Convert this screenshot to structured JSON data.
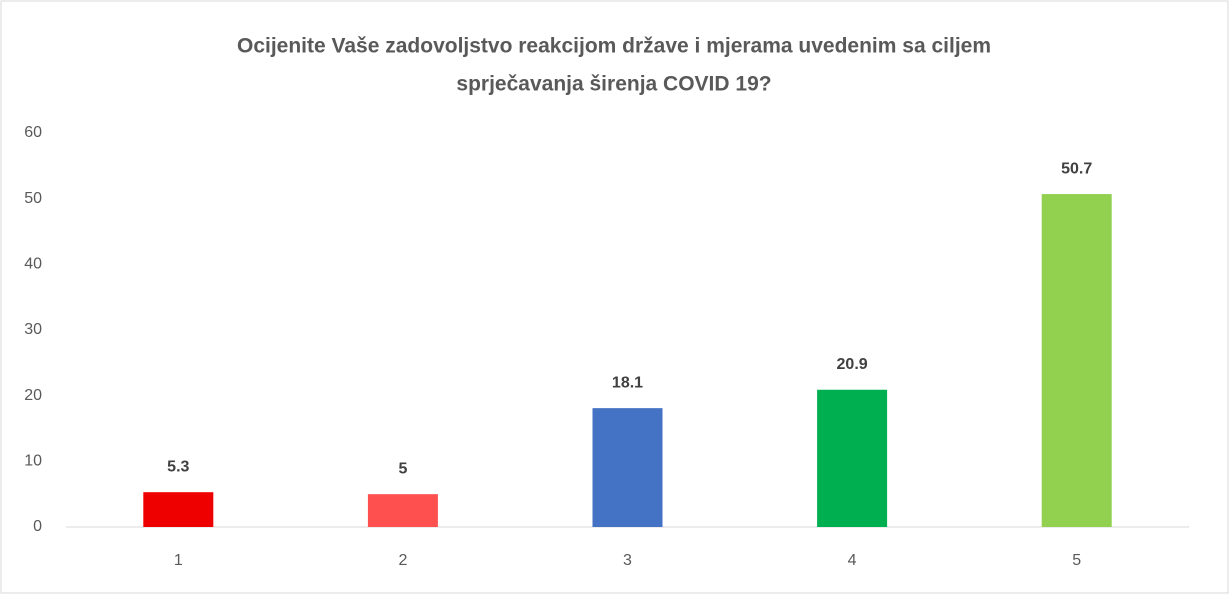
{
  "chart_data": {
    "type": "bar",
    "title": [
      "Ocijenite Vaše zadovoljstvo reakcijom države i mjerama uvedenim sa ciljem",
      "sprječavanja širenja COVID 19?"
    ],
    "categories": [
      "1",
      "2",
      "3",
      "4",
      "5"
    ],
    "values": [
      5.3,
      5,
      18.1,
      20.9,
      50.7
    ],
    "colors": [
      "#ee0000",
      "#ff5050",
      "#4472c4",
      "#00b050",
      "#92d050"
    ],
    "ylim": [
      0,
      60
    ],
    "yticks": [
      0,
      10,
      20,
      30,
      40,
      50,
      60
    ],
    "grid": false
  }
}
